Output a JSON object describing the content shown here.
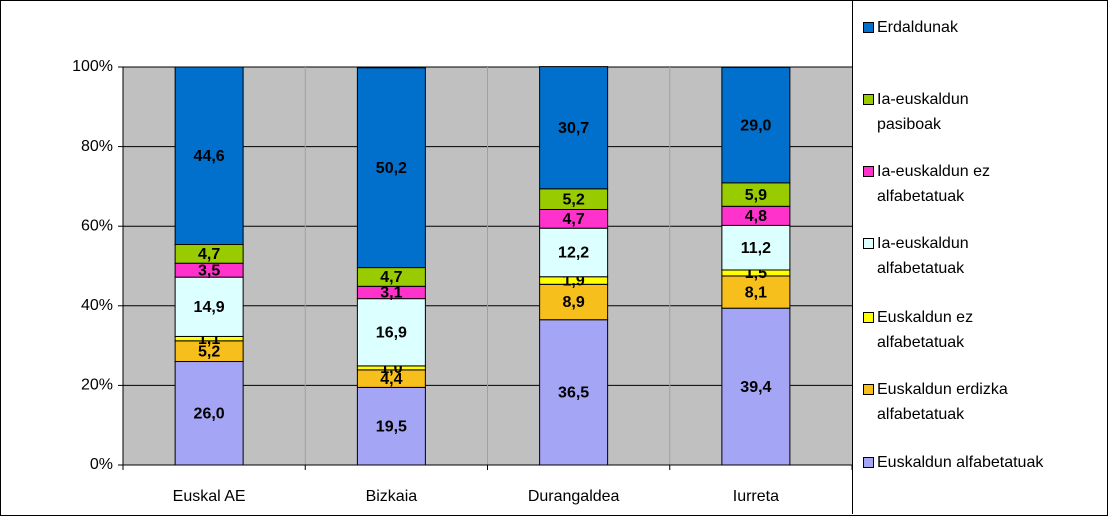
{
  "chart_data": {
    "type": "stacked_bar",
    "categories": [
      "Euskal AE",
      "Bizkaia",
      "Durangaldea",
      "Iurreta"
    ],
    "series": [
      {
        "name": "Euskaldun alfabetatuak",
        "color": "#a5a5f5",
        "values": [
          26.0,
          19.5,
          36.5,
          39.4
        ],
        "value_labels": [
          "26,0",
          "19,5",
          "36,5",
          "39,4"
        ]
      },
      {
        "name": "Euskaldun erdizka alfabetatuak",
        "color": "#f7bf1b",
        "values": [
          5.2,
          4.4,
          8.9,
          8.1
        ],
        "value_labels": [
          "5,2",
          "4,4",
          "8,9",
          "8,1"
        ]
      },
      {
        "name": "Euskaldun ez alfabetatuak",
        "color": "#ffff00",
        "values": [
          1.1,
          1.0,
          1.9,
          1.5
        ],
        "value_labels": [
          "1,1",
          "1,0",
          "1,9",
          "1,5"
        ]
      },
      {
        "name": "Ia-euskaldun alfabetatuak",
        "color": "#dcffff",
        "values": [
          14.9,
          16.9,
          12.2,
          11.2
        ],
        "value_labels": [
          "14,9",
          "16,9",
          "12,2",
          "11,2"
        ]
      },
      {
        "name": "Ia-euskaldun ez alfabetatuak",
        "color": "#ff33cc",
        "values": [
          3.5,
          3.1,
          4.7,
          4.8
        ],
        "value_labels": [
          "3,5",
          "3,1",
          "4,7",
          "4,8"
        ]
      },
      {
        "name": "Ia-euskaldun pasiboak",
        "color": "#99cc00",
        "values": [
          4.7,
          4.7,
          5.2,
          5.9
        ],
        "value_labels": [
          "4,7",
          "4,7",
          "5,2",
          "5,9"
        ]
      },
      {
        "name": "Erdaldunak",
        "color": "#0070cc",
        "values": [
          44.6,
          50.2,
          30.7,
          29.0
        ],
        "value_labels": [
          "44,6",
          "50,2",
          "30,7",
          "29,0"
        ]
      }
    ],
    "ylim": [
      0,
      100
    ],
    "yticks": [
      {
        "value": 0,
        "label": "0%"
      },
      {
        "value": 20,
        "label": "20%"
      },
      {
        "value": 40,
        "label": "40%"
      },
      {
        "value": 60,
        "label": "60%"
      },
      {
        "value": 80,
        "label": "80%"
      },
      {
        "value": 100,
        "label": "100%"
      }
    ],
    "grid": true,
    "legend": "right"
  }
}
